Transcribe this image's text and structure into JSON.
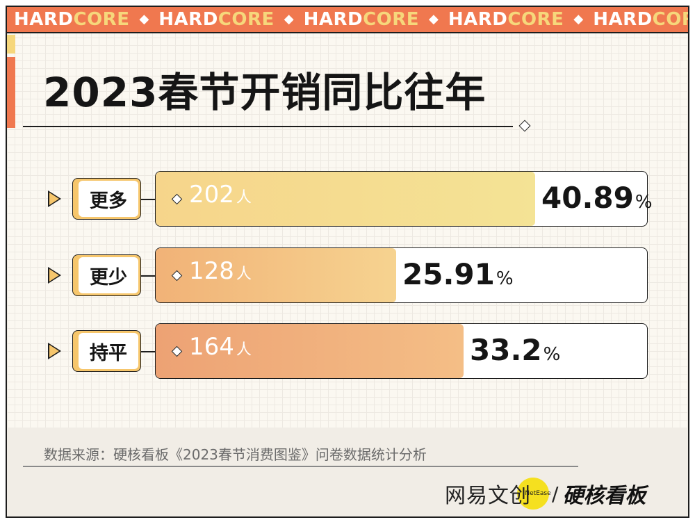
{
  "banner": {
    "word_dark": "HARD",
    "word_accent": "CORE",
    "separator": "◆",
    "repeat": 5
  },
  "title": "2023春节开销同比往年",
  "count_unit": "人",
  "percent_sign": "%",
  "rows": [
    {
      "category": "更多",
      "count": "202",
      "percent": "40.89",
      "fill_color_start": "#f6d58b",
      "fill_color_end": "#f4e395"
    },
    {
      "category": "更少",
      "count": "128",
      "percent": "25.91",
      "fill_color_start": "#f1b277",
      "fill_color_end": "#f6d390"
    },
    {
      "category": "持平",
      "count": "164",
      "percent": "33.2",
      "fill_color_start": "#eda274",
      "fill_color_end": "#f4be86"
    }
  ],
  "footer": {
    "source": "数据来源：硬核看板《2023春节消费图鉴》问卷数据统计分析",
    "brand_left": "网易文创",
    "brand_badge": "NetEase",
    "brand_separator": "/",
    "brand_right": "硬核看板"
  },
  "colors": {
    "banner_orange": "#f0784f",
    "accent_yellow": "#f6d77b",
    "badge_yellow": "#f5e01f",
    "label_box_edge": "#f6c66c"
  },
  "chart_data": {
    "type": "bar",
    "orientation": "horizontal",
    "title": "2023春节开销同比往年",
    "categories": [
      "更多",
      "更少",
      "持平"
    ],
    "series": [
      {
        "values": [
          202,
          128,
          164
        ]
      }
    ],
    "percentages": [
      40.89,
      25.91,
      33.2
    ],
    "unit": "人"
  }
}
